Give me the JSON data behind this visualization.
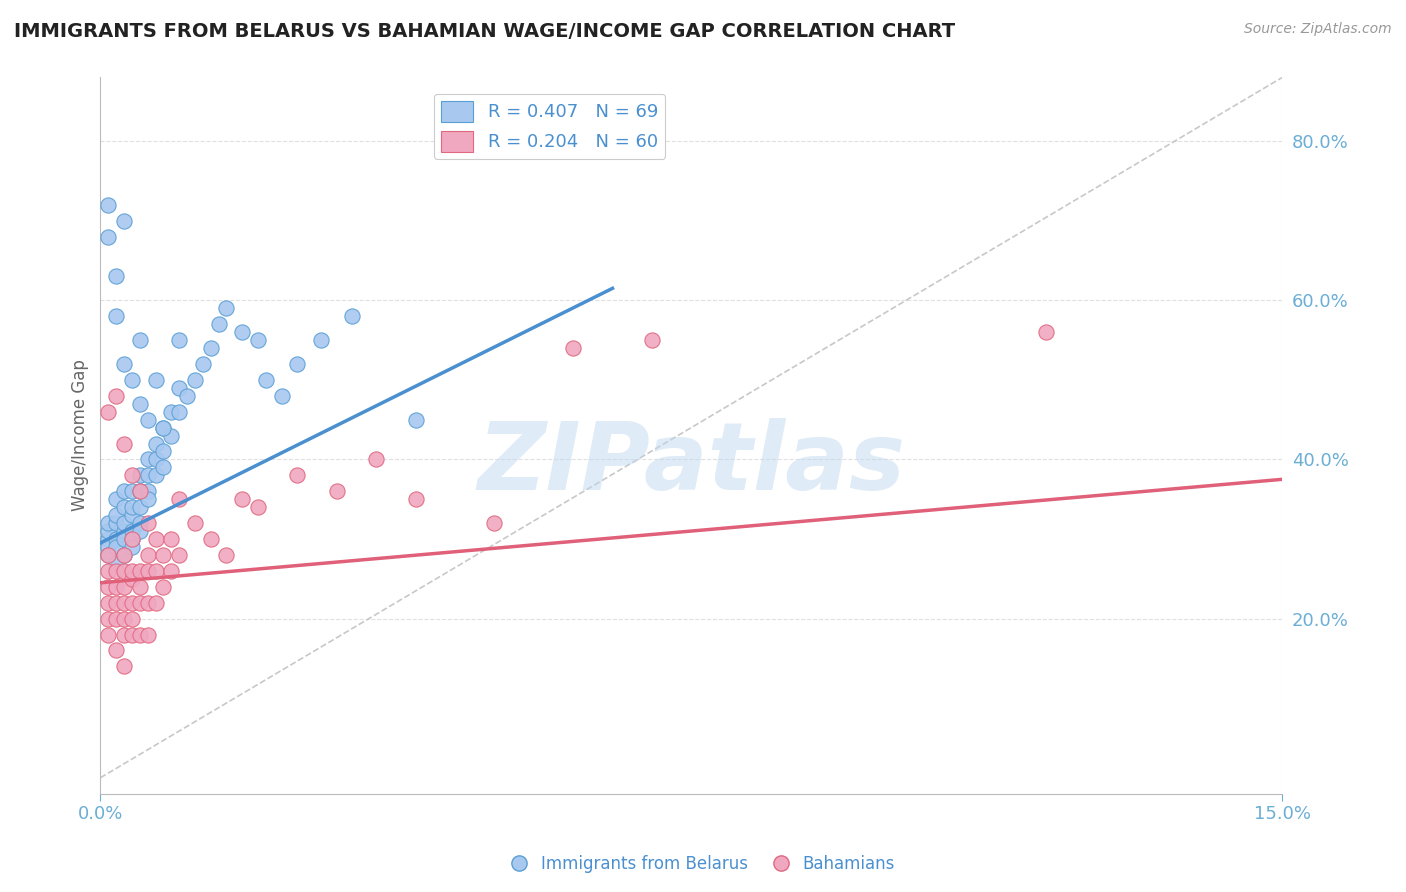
{
  "title": "IMMIGRANTS FROM BELARUS VS BAHAMIAN WAGE/INCOME GAP CORRELATION CHART",
  "source_text": "Source: ZipAtlas.com",
  "ylabel": "Wage/Income Gap",
  "watermark": "ZIPatlas",
  "legend_entries": [
    {
      "label": "R = 0.407   N = 69",
      "color": "#a8c8f0"
    },
    {
      "label": "R = 0.204   N = 60",
      "color": "#f0a8c0"
    }
  ],
  "xlim": [
    0.0,
    0.15
  ],
  "ylim": [
    -0.02,
    0.88
  ],
  "yticks": [
    0.2,
    0.4,
    0.6,
    0.8
  ],
  "ytick_labels": [
    "20.0%",
    "40.0%",
    "60.0%",
    "80.0%"
  ],
  "xticks": [
    0.0,
    0.15
  ],
  "xtick_labels": [
    "0.0%",
    "15.0%"
  ],
  "blue_color": "#a8c8f0",
  "pink_color": "#f0a8c0",
  "blue_edge_color": "#5a9fd4",
  "pink_edge_color": "#e06880",
  "blue_line_color": "#4a90d0",
  "pink_line_color": "#e0607a",
  "ref_line_color": "#c8c8c8",
  "grid_color": "#e0e0e0",
  "tick_color": "#6baed6",
  "blue_scatter_x": [
    0.001,
    0.001,
    0.001,
    0.001,
    0.001,
    0.002,
    0.002,
    0.002,
    0.002,
    0.002,
    0.002,
    0.003,
    0.003,
    0.003,
    0.003,
    0.003,
    0.003,
    0.004,
    0.004,
    0.004,
    0.004,
    0.004,
    0.004,
    0.005,
    0.005,
    0.005,
    0.005,
    0.005,
    0.006,
    0.006,
    0.006,
    0.006,
    0.007,
    0.007,
    0.007,
    0.008,
    0.008,
    0.008,
    0.009,
    0.009,
    0.01,
    0.01,
    0.011,
    0.012,
    0.013,
    0.014,
    0.015,
    0.016,
    0.018,
    0.02,
    0.021,
    0.023,
    0.025,
    0.028,
    0.032,
    0.04,
    0.001,
    0.001,
    0.002,
    0.002,
    0.003,
    0.003,
    0.004,
    0.005,
    0.005,
    0.006,
    0.007,
    0.008,
    0.01
  ],
  "blue_scatter_y": [
    0.3,
    0.29,
    0.31,
    0.28,
    0.32,
    0.3,
    0.32,
    0.35,
    0.29,
    0.27,
    0.33,
    0.31,
    0.34,
    0.3,
    0.28,
    0.32,
    0.36,
    0.33,
    0.36,
    0.31,
    0.3,
    0.29,
    0.34,
    0.36,
    0.34,
    0.32,
    0.38,
    0.31,
    0.38,
    0.36,
    0.4,
    0.35,
    0.4,
    0.38,
    0.42,
    0.41,
    0.39,
    0.44,
    0.43,
    0.46,
    0.46,
    0.49,
    0.48,
    0.5,
    0.52,
    0.54,
    0.57,
    0.59,
    0.56,
    0.55,
    0.5,
    0.48,
    0.52,
    0.55,
    0.58,
    0.45,
    0.72,
    0.68,
    0.63,
    0.58,
    0.7,
    0.52,
    0.5,
    0.47,
    0.55,
    0.45,
    0.5,
    0.44,
    0.55
  ],
  "pink_scatter_x": [
    0.001,
    0.001,
    0.001,
    0.001,
    0.001,
    0.001,
    0.002,
    0.002,
    0.002,
    0.002,
    0.002,
    0.003,
    0.003,
    0.003,
    0.003,
    0.003,
    0.003,
    0.003,
    0.004,
    0.004,
    0.004,
    0.004,
    0.004,
    0.004,
    0.005,
    0.005,
    0.005,
    0.005,
    0.006,
    0.006,
    0.006,
    0.006,
    0.006,
    0.007,
    0.007,
    0.007,
    0.008,
    0.008,
    0.009,
    0.009,
    0.01,
    0.01,
    0.012,
    0.014,
    0.016,
    0.018,
    0.02,
    0.025,
    0.03,
    0.035,
    0.04,
    0.05,
    0.06,
    0.07,
    0.12,
    0.001,
    0.002,
    0.003,
    0.004,
    0.005
  ],
  "pink_scatter_y": [
    0.24,
    0.22,
    0.26,
    0.2,
    0.18,
    0.28,
    0.22,
    0.2,
    0.24,
    0.26,
    0.16,
    0.24,
    0.22,
    0.18,
    0.26,
    0.2,
    0.14,
    0.28,
    0.25,
    0.22,
    0.18,
    0.26,
    0.2,
    0.3,
    0.24,
    0.22,
    0.26,
    0.18,
    0.26,
    0.22,
    0.28,
    0.18,
    0.32,
    0.26,
    0.22,
    0.3,
    0.28,
    0.24,
    0.3,
    0.26,
    0.28,
    0.35,
    0.32,
    0.3,
    0.28,
    0.35,
    0.34,
    0.38,
    0.36,
    0.4,
    0.35,
    0.32,
    0.54,
    0.55,
    0.56,
    0.46,
    0.48,
    0.42,
    0.38,
    0.36
  ],
  "blue_trend_x": [
    0.0,
    0.065
  ],
  "blue_trend_y": [
    0.295,
    0.615
  ],
  "pink_trend_x": [
    0.0,
    0.15
  ],
  "pink_trend_y": [
    0.245,
    0.375
  ],
  "ref_line_x": [
    0.0,
    0.15
  ],
  "ref_line_y": [
    0.0,
    0.88
  ]
}
